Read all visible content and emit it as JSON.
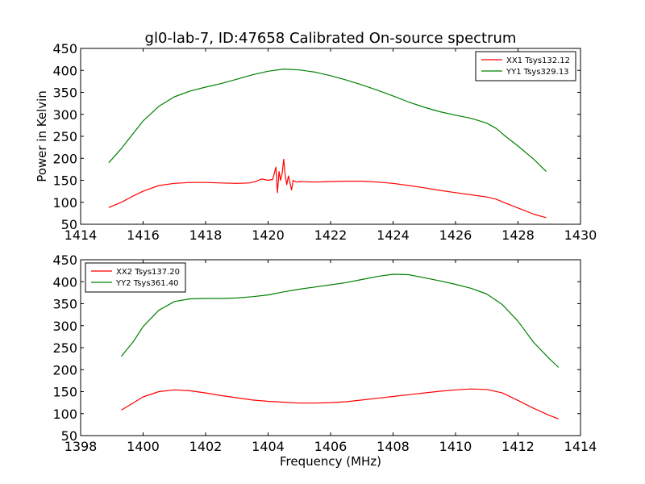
{
  "chart_data": [
    {
      "type": "line",
      "title": "gl0-lab-7, ID:47658 Calibrated On-source spectrum",
      "xlabel": "",
      "ylabel": "Power in Kelvin",
      "xlim": [
        1414,
        1430
      ],
      "ylim": [
        50,
        450
      ],
      "xticks": [
        1414,
        1416,
        1418,
        1420,
        1422,
        1424,
        1426,
        1428,
        1430
      ],
      "yticks": [
        50,
        100,
        150,
        200,
        250,
        300,
        350,
        400,
        450
      ],
      "grid": false,
      "legend_position": "upper right",
      "series": [
        {
          "name": "XX1 Tsys132.12",
          "color": "#ff0000",
          "x": [
            1414.9,
            1415.3,
            1415.7,
            1416.0,
            1416.5,
            1417.0,
            1417.5,
            1418.0,
            1418.5,
            1419.0,
            1419.4,
            1419.6,
            1419.8,
            1420.0,
            1420.15,
            1420.25,
            1420.3,
            1420.35,
            1420.4,
            1420.45,
            1420.5,
            1420.55,
            1420.6,
            1420.65,
            1420.7,
            1420.75,
            1420.8,
            1420.9,
            1421.0,
            1421.5,
            1422.0,
            1422.5,
            1423.0,
            1423.5,
            1424.0,
            1424.5,
            1425.0,
            1425.5,
            1426.0,
            1426.5,
            1427.0,
            1427.3,
            1427.6,
            1428.0,
            1428.5,
            1428.9
          ],
          "y": [
            88,
            100,
            115,
            125,
            138,
            143,
            145,
            145,
            144,
            143,
            144,
            147,
            153,
            150,
            152,
            180,
            122,
            170,
            150,
            165,
            198,
            160,
            140,
            160,
            145,
            128,
            150,
            146,
            147,
            146,
            147,
            148,
            148,
            146,
            143,
            138,
            133,
            127,
            122,
            117,
            112,
            107,
            98,
            87,
            73,
            65
          ]
        },
        {
          "name": "YY1 Tsys329.13",
          "color": "#008000",
          "x": [
            1414.9,
            1415.3,
            1415.7,
            1416.0,
            1416.5,
            1417.0,
            1417.5,
            1418.0,
            1418.5,
            1419.0,
            1419.5,
            1420.0,
            1420.5,
            1421.0,
            1421.5,
            1422.0,
            1422.5,
            1423.0,
            1423.5,
            1424.0,
            1424.5,
            1425.0,
            1425.5,
            1426.0,
            1426.5,
            1427.0,
            1427.3,
            1427.6,
            1428.0,
            1428.5,
            1428.9
          ],
          "y": [
            190,
            222,
            258,
            285,
            318,
            340,
            353,
            362,
            370,
            380,
            390,
            398,
            403,
            401,
            396,
            388,
            378,
            367,
            355,
            342,
            328,
            316,
            306,
            298,
            291,
            280,
            268,
            250,
            228,
            198,
            170
          ]
        }
      ]
    },
    {
      "type": "line",
      "title": "",
      "xlabel": "Frequency (MHz)",
      "ylabel": "",
      "xlim": [
        1398,
        1414
      ],
      "ylim": [
        50,
        450
      ],
      "xticks": [
        1398,
        1400,
        1402,
        1404,
        1406,
        1408,
        1410,
        1412,
        1414
      ],
      "yticks": [
        50,
        100,
        150,
        200,
        250,
        300,
        350,
        400,
        450
      ],
      "grid": false,
      "legend_position": "upper left",
      "series": [
        {
          "name": "XX2 Tsys137.20",
          "color": "#ff0000",
          "x": [
            1399.3,
            1399.7,
            1400.0,
            1400.5,
            1401.0,
            1401.5,
            1402.0,
            1402.5,
            1403.0,
            1403.5,
            1404.0,
            1404.5,
            1405.0,
            1405.5,
            1406.0,
            1406.5,
            1407.0,
            1407.5,
            1408.0,
            1408.5,
            1409.0,
            1409.5,
            1410.0,
            1410.5,
            1411.0,
            1411.5,
            1412.0,
            1412.5,
            1413.0,
            1413.3
          ],
          "y": [
            108,
            125,
            138,
            150,
            154,
            152,
            147,
            141,
            136,
            131,
            128,
            126,
            124,
            124,
            125,
            127,
            131,
            135,
            139,
            143,
            147,
            151,
            154,
            156,
            155,
            147,
            130,
            112,
            96,
            88
          ]
        },
        {
          "name": "YY2 Tsys361.40",
          "color": "#008000",
          "x": [
            1399.3,
            1399.7,
            1400.0,
            1400.5,
            1401.0,
            1401.5,
            1402.0,
            1402.5,
            1403.0,
            1403.5,
            1404.0,
            1404.5,
            1405.0,
            1405.5,
            1406.0,
            1406.5,
            1407.0,
            1407.5,
            1408.0,
            1408.5,
            1409.0,
            1409.5,
            1410.0,
            1410.5,
            1411.0,
            1411.5,
            1412.0,
            1412.5,
            1413.0,
            1413.3
          ],
          "y": [
            230,
            265,
            298,
            335,
            355,
            361,
            362,
            362,
            363,
            366,
            370,
            377,
            383,
            388,
            393,
            398,
            405,
            412,
            417,
            416,
            409,
            402,
            394,
            385,
            372,
            348,
            310,
            262,
            225,
            205
          ]
        }
      ]
    }
  ]
}
